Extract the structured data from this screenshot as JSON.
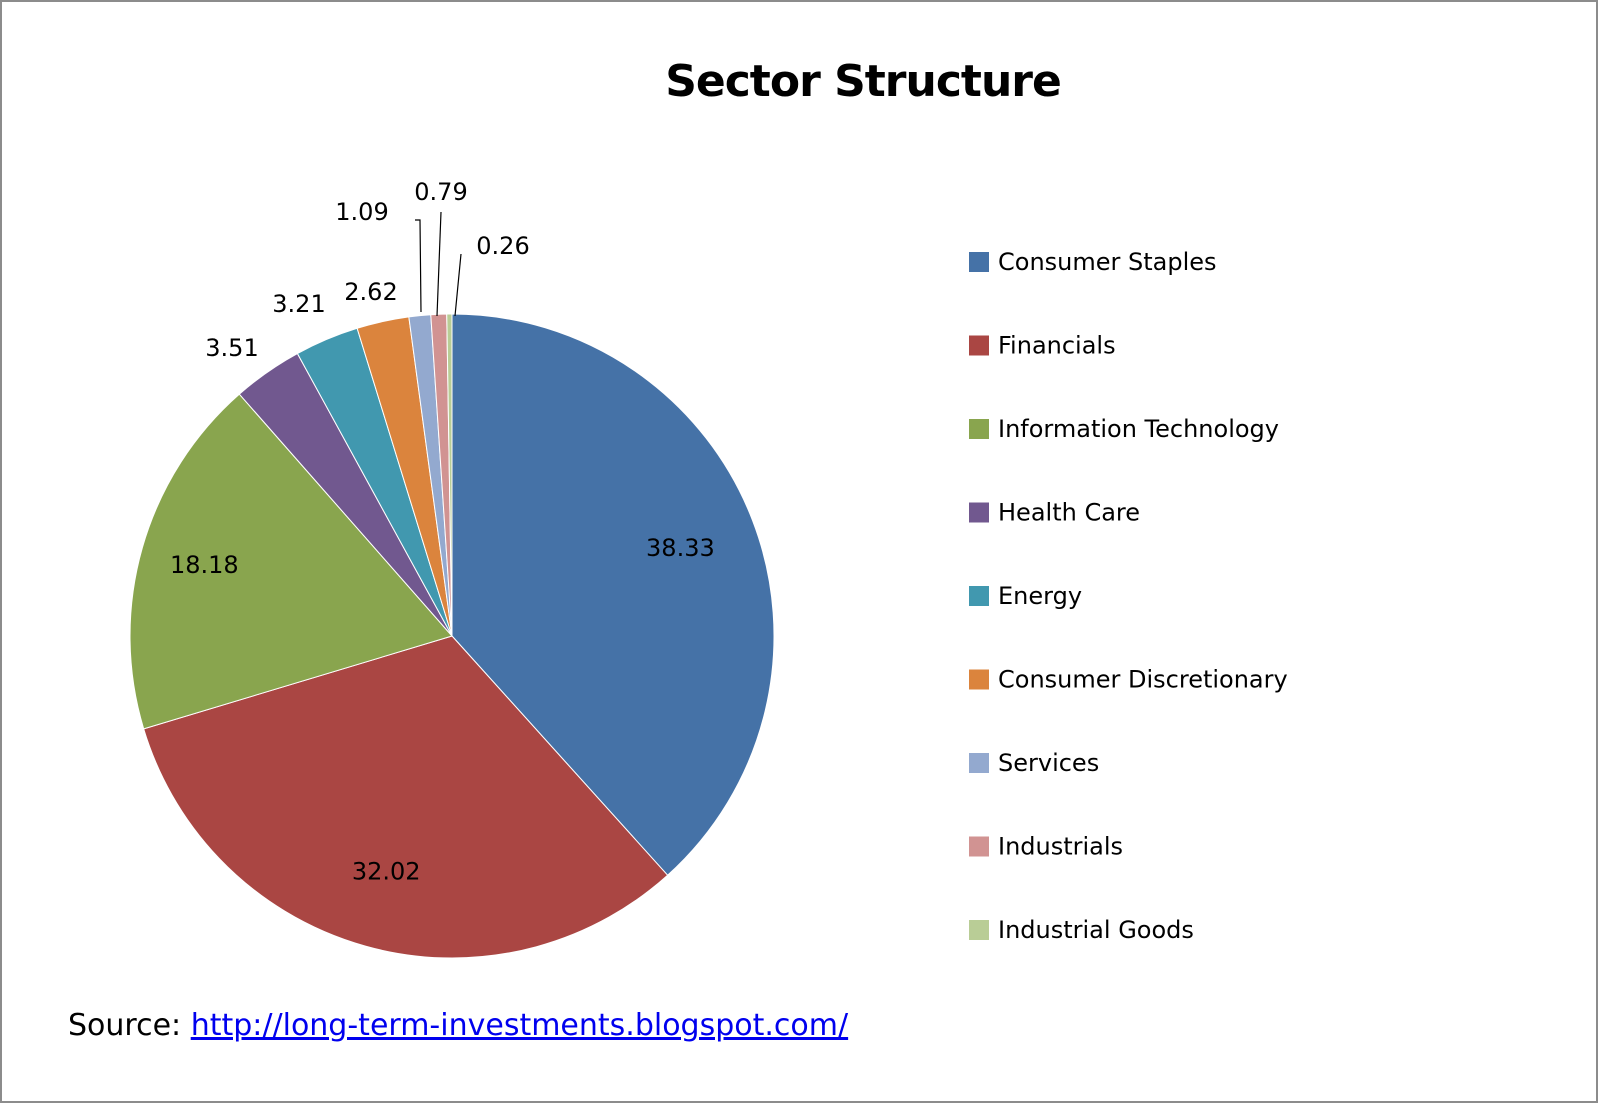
{
  "chart_data": {
    "type": "pie",
    "title": "Sector Structure",
    "categories": [
      "Consumer Staples",
      "Financials",
      "Information Technology",
      "Health Care",
      "Energy",
      "Consumer Discretionary",
      "Services",
      "Industrials",
      "Industrial Goods"
    ],
    "values": [
      38.33,
      32.02,
      18.18,
      3.51,
      3.21,
      2.62,
      1.09,
      0.79,
      0.26
    ],
    "value_labels": [
      "38.33",
      "32.02",
      "18.18",
      "3.51",
      "3.21",
      "2.62",
      "1.09",
      "0.79",
      "0.26"
    ],
    "colors": [
      "#4572A7",
      "#AA4643",
      "#89A54E",
      "#71588F",
      "#4198AF",
      "#DB843D",
      "#93A9CF",
      "#D19392",
      "#B9CD96"
    ],
    "legend_position": "right",
    "start_angle": "top, clockwise"
  },
  "source": {
    "label": "Source:",
    "link_text": "http://long-term-investments.blogspot.com/"
  }
}
